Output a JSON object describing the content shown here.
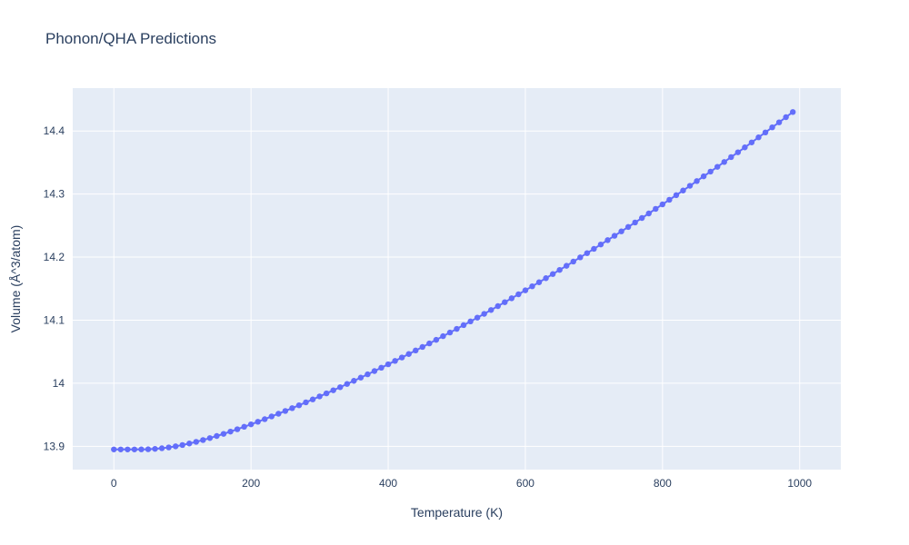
{
  "page": {
    "background": "#ffffff"
  },
  "chart_data": {
    "type": "line",
    "mode": "lines+markers",
    "title": "Phonon/QHA Predictions",
    "xlabel": "Temperature (K)",
    "ylabel": "Volume (Å^3/atom)",
    "x": [
      0,
      10,
      20,
      30,
      40,
      50,
      60,
      70,
      80,
      90,
      100,
      110,
      120,
      130,
      140,
      150,
      160,
      170,
      180,
      190,
      200,
      210,
      220,
      230,
      240,
      250,
      260,
      270,
      280,
      290,
      300,
      310,
      320,
      330,
      340,
      350,
      360,
      370,
      380,
      390,
      400,
      410,
      420,
      430,
      440,
      450,
      460,
      470,
      480,
      490,
      500,
      510,
      520,
      530,
      540,
      550,
      560,
      570,
      580,
      590,
      600,
      610,
      620,
      630,
      640,
      650,
      660,
      670,
      680,
      690,
      700,
      710,
      720,
      730,
      740,
      750,
      760,
      770,
      780,
      790,
      800,
      810,
      820,
      830,
      840,
      850,
      860,
      870,
      880,
      890,
      900,
      910,
      920,
      930,
      940,
      950,
      960,
      970,
      980,
      990
    ],
    "y": [
      13.895,
      13.895,
      13.895,
      13.895,
      13.8951,
      13.8953,
      13.8959,
      13.8969,
      13.8982,
      13.8999,
      13.902,
      13.9044,
      13.907,
      13.9099,
      13.913,
      13.9163,
      13.9197,
      13.9233,
      13.927,
      13.9309,
      13.9348,
      13.9389,
      13.943,
      13.9473,
      13.9516,
      13.956,
      13.9605,
      13.965,
      13.9697,
      13.9743,
      13.9791,
      13.9839,
      13.9888,
      13.9937,
      13.9988,
      14.0038,
      14.0089,
      14.0141,
      14.0193,
      14.0246,
      14.03,
      14.0354,
      14.0408,
      14.0463,
      14.0519,
      14.0575,
      14.0631,
      14.0688,
      14.0746,
      14.0804,
      14.0862,
      14.0921,
      14.098,
      14.104,
      14.11,
      14.1161,
      14.1223,
      14.1285,
      14.1347,
      14.141,
      14.1473,
      14.1537,
      14.1601,
      14.1666,
      14.1731,
      14.1797,
      14.1862,
      14.1929,
      14.1996,
      14.2063,
      14.2131,
      14.22,
      14.2269,
      14.2338,
      14.2408,
      14.2478,
      14.2549,
      14.262,
      14.2692,
      14.2765,
      14.2836,
      14.2909,
      14.2982,
      14.3056,
      14.3131,
      14.3206,
      14.3281,
      14.3356,
      14.3432,
      14.3508,
      14.3586,
      14.3662,
      14.374,
      14.3819,
      14.3899,
      14.3977,
      14.4058,
      14.4137,
      14.4219,
      14.4301
    ],
    "xlim": [
      -60,
      1060
    ],
    "ylim": [
      13.863,
      14.468
    ],
    "xticks": [
      0,
      200,
      400,
      600,
      800,
      1000
    ],
    "xtick_labels": [
      "0",
      "200",
      "400",
      "600",
      "800",
      "1000"
    ],
    "yticks": [
      13.9,
      14.0,
      14.1,
      14.2,
      14.3,
      14.4
    ],
    "ytick_labels": [
      "13.9",
      "14",
      "14.1",
      "14.2",
      "14.3",
      "14.4"
    ],
    "grid": true,
    "legend": "none",
    "plot_bg": "#e5ecf6",
    "grid_color": "#ffffff",
    "line_color": "#636efa",
    "marker_color": "#636efa",
    "text_color": "#2a3f5f"
  }
}
